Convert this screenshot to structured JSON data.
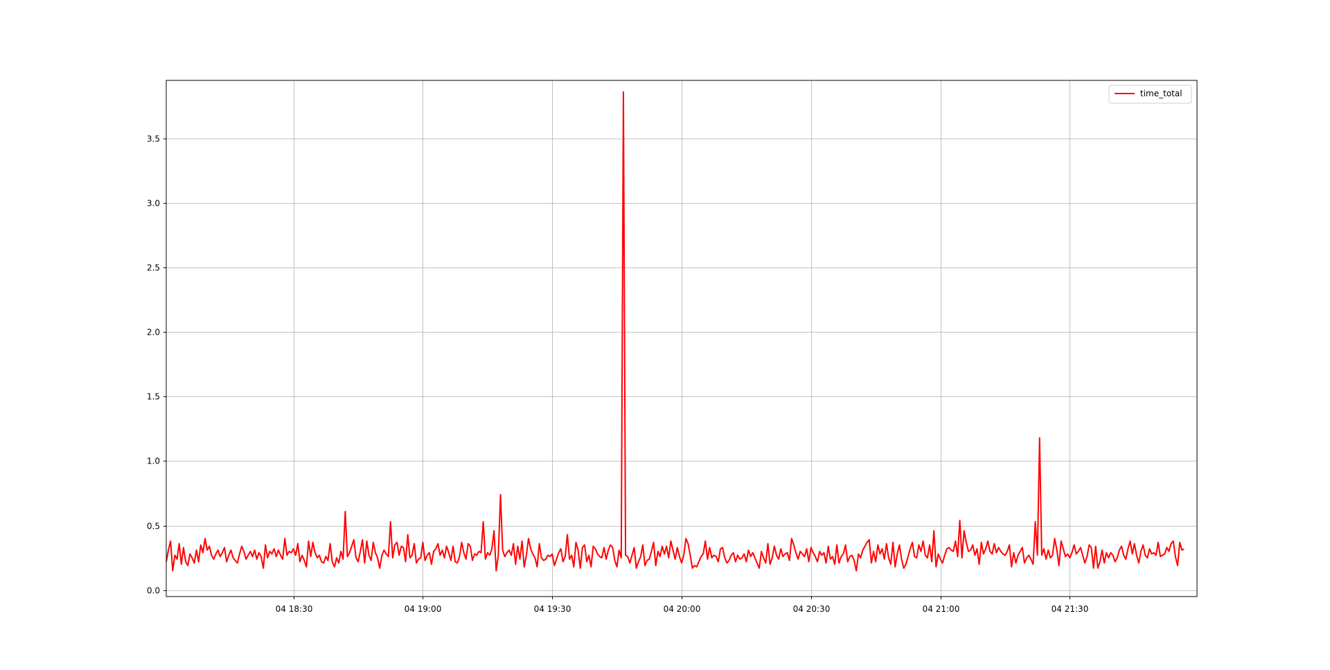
{
  "chart_data": {
    "type": "line",
    "title": "",
    "xlabel": "",
    "ylabel": "",
    "xlim": [
      "2000-01-04 18:00:30",
      "2000-01-04 21:59:30"
    ],
    "ylim": [
      -0.05,
      3.95
    ],
    "grid": true,
    "legend_position": "top-right",
    "x_ticks": [
      {
        "label": "04 18:30",
        "time": "2000-01-04 18:30"
      },
      {
        "label": "04 19:00",
        "time": "2000-01-04 19:00"
      },
      {
        "label": "04 19:30",
        "time": "2000-01-04 19:30"
      },
      {
        "label": "04 20:00",
        "time": "2000-01-04 20:00"
      },
      {
        "label": "04 20:30",
        "time": "2000-01-04 20:30"
      },
      {
        "label": "04 21:00",
        "time": "2000-01-04 21:00"
      },
      {
        "label": "04 21:30",
        "time": "2000-01-04 21:30"
      }
    ],
    "y_ticks": [
      {
        "label": "0.0",
        "value": 0.0
      },
      {
        "label": "0.5",
        "value": 0.5
      },
      {
        "label": "1.0",
        "value": 1.0
      },
      {
        "label": "1.5",
        "value": 1.5
      },
      {
        "label": "2.0",
        "value": 2.0
      },
      {
        "label": "2.5",
        "value": 2.5
      },
      {
        "label": "3.0",
        "value": 3.0
      },
      {
        "label": "3.5",
        "value": 3.5
      }
    ],
    "series": [
      {
        "name": "time_total",
        "color": "#ff0000",
        "x_start": "2000-01-04 18:00:30",
        "x_step_seconds": 30,
        "values": [
          0.22,
          0.31,
          0.38,
          0.15,
          0.27,
          0.24,
          0.36,
          0.2,
          0.33,
          0.22,
          0.19,
          0.28,
          0.25,
          0.21,
          0.31,
          0.22,
          0.35,
          0.29,
          0.4,
          0.31,
          0.34,
          0.27,
          0.24,
          0.28,
          0.31,
          0.26,
          0.29,
          0.33,
          0.22,
          0.27,
          0.31,
          0.25,
          0.23,
          0.21,
          0.28,
          0.34,
          0.3,
          0.24,
          0.27,
          0.3,
          0.26,
          0.31,
          0.24,
          0.29,
          0.26,
          0.17,
          0.35,
          0.25,
          0.3,
          0.28,
          0.32,
          0.26,
          0.31,
          0.27,
          0.24,
          0.4,
          0.27,
          0.3,
          0.29,
          0.32,
          0.27,
          0.36,
          0.22,
          0.27,
          0.23,
          0.18,
          0.38,
          0.26,
          0.37,
          0.29,
          0.25,
          0.27,
          0.22,
          0.21,
          0.26,
          0.23,
          0.36,
          0.22,
          0.18,
          0.25,
          0.21,
          0.3,
          0.24,
          0.61,
          0.26,
          0.29,
          0.34,
          0.39,
          0.25,
          0.22,
          0.3,
          0.39,
          0.21,
          0.38,
          0.27,
          0.23,
          0.37,
          0.29,
          0.25,
          0.17,
          0.27,
          0.31,
          0.28,
          0.26,
          0.53,
          0.25,
          0.35,
          0.37,
          0.27,
          0.34,
          0.33,
          0.22,
          0.43,
          0.25,
          0.27,
          0.36,
          0.21,
          0.24,
          0.25,
          0.37,
          0.23,
          0.27,
          0.29,
          0.2,
          0.3,
          0.32,
          0.36,
          0.27,
          0.31,
          0.25,
          0.34,
          0.29,
          0.23,
          0.34,
          0.22,
          0.21,
          0.26,
          0.37,
          0.29,
          0.24,
          0.36,
          0.34,
          0.23,
          0.28,
          0.27,
          0.3,
          0.29,
          0.53,
          0.24,
          0.29,
          0.27,
          0.32,
          0.46,
          0.15,
          0.27,
          0.74,
          0.31,
          0.26,
          0.29,
          0.31,
          0.27,
          0.36,
          0.2,
          0.34,
          0.24,
          0.38,
          0.18,
          0.27,
          0.4,
          0.32,
          0.28,
          0.25,
          0.18,
          0.36,
          0.25,
          0.23,
          0.24,
          0.27,
          0.26,
          0.28,
          0.19,
          0.24,
          0.29,
          0.32,
          0.22,
          0.26,
          0.43,
          0.24,
          0.27,
          0.18,
          0.37,
          0.31,
          0.17,
          0.33,
          0.35,
          0.22,
          0.27,
          0.18,
          0.34,
          0.32,
          0.28,
          0.26,
          0.25,
          0.33,
          0.24,
          0.31,
          0.35,
          0.33,
          0.23,
          0.18,
          0.31,
          0.25,
          3.86,
          0.27,
          0.26,
          0.21,
          0.27,
          0.33,
          0.17,
          0.22,
          0.26,
          0.35,
          0.19,
          0.23,
          0.24,
          0.3,
          0.37,
          0.19,
          0.3,
          0.26,
          0.34,
          0.28,
          0.34,
          0.25,
          0.38,
          0.31,
          0.24,
          0.33,
          0.26,
          0.21,
          0.27,
          0.4,
          0.36,
          0.27,
          0.17,
          0.19,
          0.18,
          0.22,
          0.26,
          0.28,
          0.38,
          0.24,
          0.33,
          0.25,
          0.27,
          0.26,
          0.22,
          0.32,
          0.33,
          0.25,
          0.21,
          0.23,
          0.27,
          0.29,
          0.22,
          0.27,
          0.24,
          0.25,
          0.28,
          0.22,
          0.31,
          0.26,
          0.29,
          0.25,
          0.21,
          0.17,
          0.3,
          0.25,
          0.21,
          0.36,
          0.2,
          0.25,
          0.34,
          0.27,
          0.24,
          0.32,
          0.26,
          0.28,
          0.29,
          0.23,
          0.4,
          0.35,
          0.29,
          0.24,
          0.3,
          0.28,
          0.26,
          0.32,
          0.22,
          0.33,
          0.29,
          0.26,
          0.22,
          0.3,
          0.27,
          0.29,
          0.21,
          0.34,
          0.24,
          0.26,
          0.2,
          0.35,
          0.21,
          0.26,
          0.28,
          0.35,
          0.22,
          0.26,
          0.27,
          0.23,
          0.15,
          0.28,
          0.25,
          0.31,
          0.34,
          0.37,
          0.39,
          0.21,
          0.3,
          0.22,
          0.35,
          0.28,
          0.32,
          0.24,
          0.36,
          0.25,
          0.2,
          0.37,
          0.18,
          0.28,
          0.35,
          0.24,
          0.17,
          0.2,
          0.26,
          0.32,
          0.37,
          0.26,
          0.25,
          0.35,
          0.3,
          0.38,
          0.27,
          0.25,
          0.35,
          0.22,
          0.46,
          0.18,
          0.28,
          0.24,
          0.21,
          0.27,
          0.32,
          0.33,
          0.31,
          0.3,
          0.38,
          0.26,
          0.54,
          0.25,
          0.46,
          0.37,
          0.3,
          0.31,
          0.35,
          0.27,
          0.32,
          0.2,
          0.37,
          0.28,
          0.32,
          0.38,
          0.3,
          0.28,
          0.36,
          0.29,
          0.33,
          0.3,
          0.28,
          0.27,
          0.3,
          0.35,
          0.18,
          0.29,
          0.21,
          0.27,
          0.3,
          0.33,
          0.21,
          0.25,
          0.27,
          0.24,
          0.2,
          0.53,
          0.27,
          1.18,
          0.27,
          0.32,
          0.24,
          0.31,
          0.25,
          0.27,
          0.4,
          0.31,
          0.19,
          0.38,
          0.32,
          0.26,
          0.28,
          0.25,
          0.29,
          0.35,
          0.28,
          0.3,
          0.33,
          0.27,
          0.21,
          0.26,
          0.35,
          0.33,
          0.17,
          0.34,
          0.17,
          0.22,
          0.31,
          0.21,
          0.29,
          0.25,
          0.29,
          0.27,
          0.22,
          0.25,
          0.31,
          0.34,
          0.27,
          0.24,
          0.32,
          0.38,
          0.28,
          0.36,
          0.27,
          0.21,
          0.3,
          0.35,
          0.27,
          0.25,
          0.32,
          0.28,
          0.29,
          0.27,
          0.37,
          0.26,
          0.27,
          0.28,
          0.33,
          0.3,
          0.36,
          0.38,
          0.26,
          0.19,
          0.37,
          0.31,
          0.32
        ]
      }
    ]
  }
}
